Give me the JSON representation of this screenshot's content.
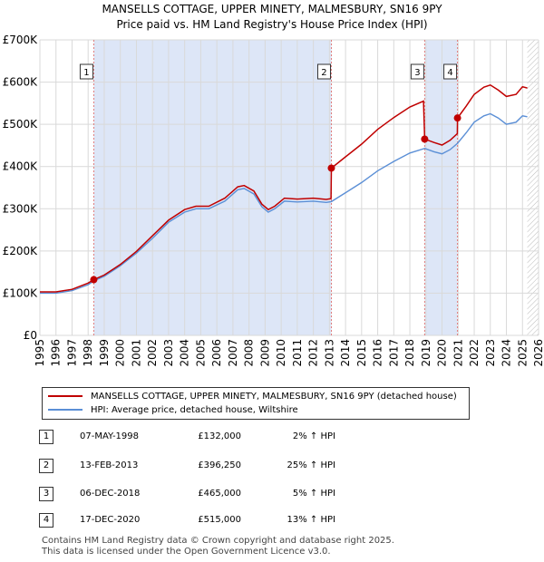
{
  "title_line1": "MANSELLS COTTAGE, UPPER MINETY, MALMESBURY, SN16 9PY",
  "title_line2": "Price paid vs. HM Land Registry's House Price Index (HPI)",
  "colors": {
    "red": "#c00000",
    "blue": "#5b8fd6",
    "shade": "#dde6f7",
    "grid": "#d9d9d9",
    "vline": "#e07b7b"
  },
  "chart_data": {
    "type": "line",
    "title": "Price paid vs. HM Land Registry's House Price Index (HPI)",
    "x_ticks": [
      "1995",
      "1996",
      "1997",
      "1998",
      "1999",
      "2000",
      "2001",
      "2002",
      "2003",
      "2004",
      "2005",
      "2006",
      "2007",
      "2008",
      "2009",
      "2010",
      "2011",
      "2012",
      "2013",
      "2014",
      "2015",
      "2016",
      "2017",
      "2018",
      "2019",
      "2020",
      "2021",
      "2022",
      "2023",
      "2024",
      "2025",
      "2026"
    ],
    "y_ticks": [
      "£0",
      "£100K",
      "£200K",
      "£300K",
      "£400K",
      "£500K",
      "£600K",
      "£700K"
    ],
    "xlim": [
      1995,
      2026
    ],
    "ylim": [
      0,
      700000
    ],
    "hpi_series": {
      "name": "HPI: Average price, detached house, Wiltshire",
      "x": [
        1995.0,
        1996.0,
        1997.0,
        1998.0,
        1998.35,
        1999.0,
        2000.0,
        2001.0,
        2002.0,
        2003.0,
        2004.0,
        2004.7,
        2005.5,
        2006.5,
        2007.3,
        2007.7,
        2008.3,
        2008.8,
        2009.2,
        2009.6,
        2010.2,
        2011.0,
        2012.0,
        2012.8,
        2013.12,
        2014.0,
        2015.0,
        2016.0,
        2017.0,
        2018.0,
        2018.92,
        2019.5,
        2020.0,
        2020.5,
        2020.96,
        2021.5,
        2022.0,
        2022.6,
        2023.0,
        2023.5,
        2024.0,
        2024.6,
        2025.0,
        2025.3
      ],
      "y": [
        100000,
        100000,
        106000,
        120000,
        129000,
        140000,
        165000,
        195000,
        230000,
        268000,
        292000,
        300000,
        300000,
        318000,
        345000,
        348000,
        335000,
        305000,
        292000,
        300000,
        318000,
        316000,
        318000,
        315000,
        317000,
        338000,
        362000,
        390000,
        412000,
        432000,
        443000,
        435000,
        430000,
        440000,
        455000,
        480000,
        505000,
        520000,
        525000,
        515000,
        500000,
        505000,
        520000,
        518000
      ]
    },
    "property_series": {
      "name": "MANSELLS COTTAGE, UPPER MINETY, MALMESBURY, SN16 9PY (detached house)",
      "x": [
        1995.0,
        1996.0,
        1997.0,
        1998.0,
        1998.35,
        1999.0,
        2000.0,
        2001.0,
        2002.0,
        2003.0,
        2004.0,
        2004.7,
        2005.5,
        2006.5,
        2007.3,
        2007.7,
        2008.3,
        2008.8,
        2009.2,
        2009.6,
        2010.2,
        2011.0,
        2012.0,
        2012.8,
        2013.1,
        2013.12,
        2014.0,
        2015.0,
        2016.0,
        2017.0,
        2018.0,
        2018.85,
        2018.92,
        2019.5,
        2020.0,
        2020.5,
        2020.95,
        2020.96,
        2021.5,
        2022.0,
        2022.6,
        2023.0,
        2023.5,
        2024.0,
        2024.6,
        2025.0,
        2025.3
      ],
      "y": [
        103000,
        103000,
        109000,
        124000,
        132000,
        143000,
        168000,
        199000,
        236000,
        273000,
        298000,
        306000,
        306000,
        325000,
        352000,
        355000,
        342000,
        311000,
        298000,
        306000,
        325000,
        323000,
        325000,
        322000,
        324000,
        396250,
        423000,
        453000,
        488000,
        516000,
        541000,
        555000,
        465000,
        457000,
        451000,
        462000,
        478000,
        515000,
        543000,
        571000,
        588000,
        593000,
        581000,
        566000,
        571000,
        589000,
        586000
      ]
    },
    "transactions": [
      {
        "label": "1",
        "x": 1998.35,
        "price": 132000
      },
      {
        "label": "2",
        "x": 2013.12,
        "price": 396250
      },
      {
        "label": "3",
        "x": 2018.92,
        "price": 465000
      },
      {
        "label": "4",
        "x": 2020.96,
        "price": 515000
      }
    ],
    "shaded_ranges": [
      [
        1998.35,
        2013.12
      ],
      [
        2018.92,
        2020.96
      ]
    ],
    "future_hatch_from": 2025.3,
    "legend_position": "below"
  },
  "legend": {
    "property_label": "MANSELLS COTTAGE, UPPER MINETY, MALMESBURY, SN16 9PY (detached house)",
    "hpi_label": "HPI: Average price, detached house, Wiltshire"
  },
  "table": [
    {
      "num": "1",
      "date": "07-MAY-1998",
      "price": "£132,000",
      "hpi": "2% ↑ HPI"
    },
    {
      "num": "2",
      "date": "13-FEB-2013",
      "price": "£396,250",
      "hpi": "25% ↑ HPI"
    },
    {
      "num": "3",
      "date": "06-DEC-2018",
      "price": "£465,000",
      "hpi": "5% ↑ HPI"
    },
    {
      "num": "4",
      "date": "17-DEC-2020",
      "price": "£515,000",
      "hpi": "13% ↑ HPI"
    }
  ],
  "footer_line1": "Contains HM Land Registry data © Crown copyright and database right 2025.",
  "footer_line2": "This data is licensed under the Open Government Licence v3.0."
}
